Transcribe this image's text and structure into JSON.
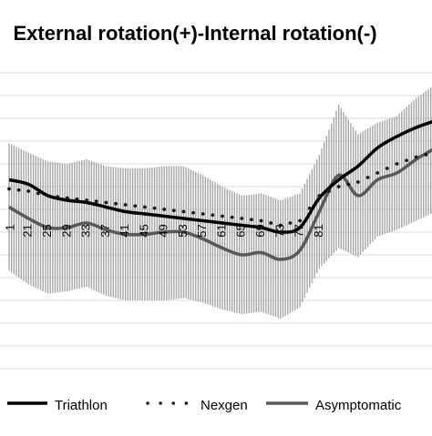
{
  "chart_data": {
    "type": "line",
    "title": "External rotation(+)-Internal rotation(-)",
    "x_tick_labels": [
      "1",
      "21",
      "25",
      "29",
      "33",
      "37",
      "41",
      "45",
      "49",
      "53",
      "57",
      "61",
      "65",
      "69",
      "73",
      "77",
      "81"
    ],
    "x": [
      1,
      5,
      9,
      13,
      17,
      21,
      25,
      29,
      33,
      37,
      41,
      45,
      49,
      53,
      57,
      61,
      65,
      69,
      73,
      77,
      81,
      85,
      89
    ],
    "ylim": [
      -4,
      9
    ],
    "grid": true,
    "legend_position": "bottom",
    "colors": {
      "triathlon": "#000000",
      "nexgen": "#1a1a1a",
      "asymptomatic": "#595959",
      "band": "#a6a6a6",
      "grid": "#d9d9d9"
    },
    "series": [
      {
        "name": "Triathlon",
        "style": "solid-thick",
        "values": [
          4.3,
          4.1,
          3.6,
          3.4,
          3.3,
          3.1,
          2.9,
          2.8,
          2.7,
          2.6,
          2.5,
          2.4,
          2.3,
          2.2,
          2.0,
          2.2,
          3.5,
          4.3,
          4.9,
          5.7,
          6.2,
          6.6,
          6.9
        ]
      },
      {
        "name": "Nexgen",
        "style": "dotted",
        "values": [
          3.9,
          3.8,
          3.6,
          3.5,
          3.4,
          3.3,
          3.2,
          3.1,
          3.0,
          2.9,
          2.8,
          2.7,
          2.6,
          2.5,
          2.3,
          2.5,
          3.6,
          4.0,
          4.2,
          4.6,
          5.0,
          5.3,
          5.5
        ]
      },
      {
        "name": "Asymptomatic",
        "style": "solid-grey",
        "values": [
          3.1,
          2.6,
          2.2,
          2.2,
          2.4,
          2.1,
          1.9,
          1.9,
          2.0,
          2.0,
          1.7,
          1.3,
          1.0,
          1.1,
          0.8,
          1.2,
          2.9,
          4.5,
          3.6,
          4.3,
          4.6,
          5.2,
          5.7
        ]
      }
    ],
    "band": {
      "name": "Asymptomatic ±SD",
      "lower": [
        0.3,
        -0.3,
        -0.7,
        -0.6,
        -0.4,
        -0.8,
        -1.0,
        -1.0,
        -1.0,
        -0.9,
        -1.1,
        -1.4,
        -1.6,
        -1.5,
        -1.8,
        -1.3,
        0.4,
        1.3,
        0.9,
        1.8,
        2.1,
        2.5,
        2.9
      ],
      "upper": [
        5.9,
        5.5,
        5.1,
        5.0,
        5.2,
        4.9,
        4.8,
        4.8,
        4.9,
        4.9,
        4.5,
        4.0,
        3.6,
        3.7,
        3.4,
        3.7,
        5.4,
        7.6,
        6.3,
        6.8,
        7.1,
        7.9,
        8.5
      ]
    }
  }
}
